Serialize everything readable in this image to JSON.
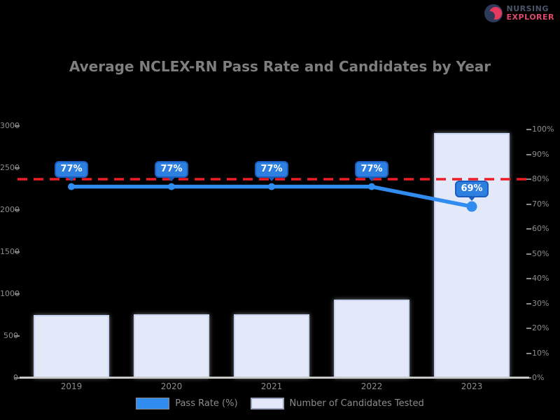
{
  "logo": {
    "line1": "NURSING",
    "line2": "EXPLORER"
  },
  "colors": {
    "background": "#000000",
    "text_gray": "#8c8c8c",
    "title_gray": "#7e7e7e",
    "bar_fill": "#E3E9F8",
    "bar_border": "#C9D4F0",
    "line_blue": "#318CF0",
    "label_box_fill": "#2D7FE0",
    "label_box_border": "#1A5DBE",
    "target_red": "#EE1C25",
    "logo_navy": "#2E3A59",
    "logo_red": "#E5395D"
  },
  "chart_data": {
    "type": "bar",
    "subtype": "combo-bar-line",
    "title": "Average NCLEX-RN Pass Rate and Candidates by Year",
    "categories": [
      "2019",
      "2020",
      "2021",
      "2022",
      "2023"
    ],
    "series": [
      {
        "name": "Pass Rate (%)",
        "type": "line",
        "axis": "right",
        "values": [
          77,
          77,
          77,
          77,
          69
        ],
        "point_labels": [
          "77%",
          "77%",
          "77%",
          "77%",
          "69%"
        ],
        "color": "#318CF0"
      },
      {
        "name": "Number of Candidates Tested",
        "type": "bar",
        "axis": "left",
        "values": [
          750,
          760,
          760,
          930,
          2920
        ],
        "color": "#E3E9F8"
      }
    ],
    "left_axis": {
      "min": 0,
      "max": 3000,
      "ticks": [
        "3000",
        "2500",
        "2000",
        "1500",
        "1000",
        "500",
        "0"
      ]
    },
    "right_axis": {
      "min": 0,
      "max": 100,
      "ticks": [
        "100%",
        "90%",
        "80%",
        "70%",
        "60%",
        "50%",
        "40%",
        "30%",
        "20%",
        "10%",
        "0%"
      ]
    },
    "target_line": {
      "value": 80,
      "color": "#EE1C25",
      "style": "dashed"
    },
    "legend_position": "bottom",
    "grid": false,
    "xlabel": "",
    "ylabel": ""
  }
}
